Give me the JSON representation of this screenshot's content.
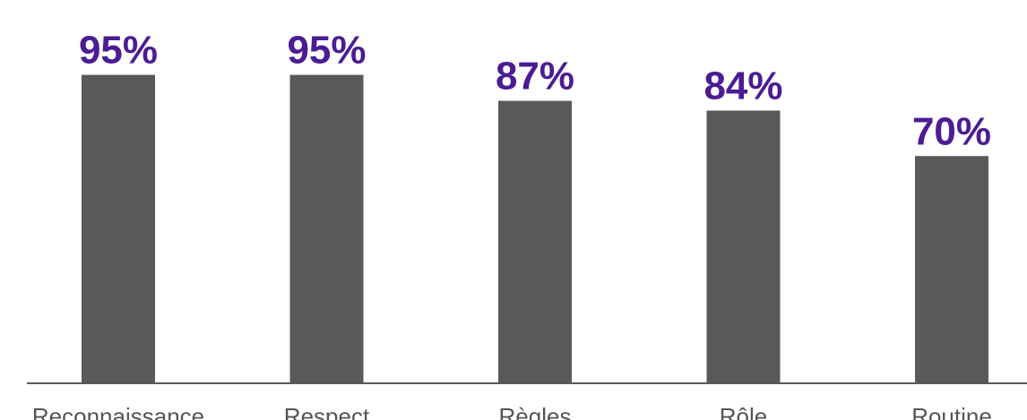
{
  "chart_data": {
    "type": "bar",
    "categories": [
      "Reconnaissance",
      "Respect",
      "Règles",
      "Rôle",
      "Routine"
    ],
    "values": [
      95,
      95,
      87,
      84,
      70
    ],
    "value_labels": [
      "95%",
      "95%",
      "87%",
      "84%",
      "70%"
    ],
    "ylim": [
      0,
      100
    ],
    "grid": false,
    "legend": "none"
  },
  "colors": {
    "bar": "#58595b",
    "value_label": "#4b1c93",
    "category_label": "#555555",
    "axis": "#595959",
    "background": "#ffffff"
  }
}
